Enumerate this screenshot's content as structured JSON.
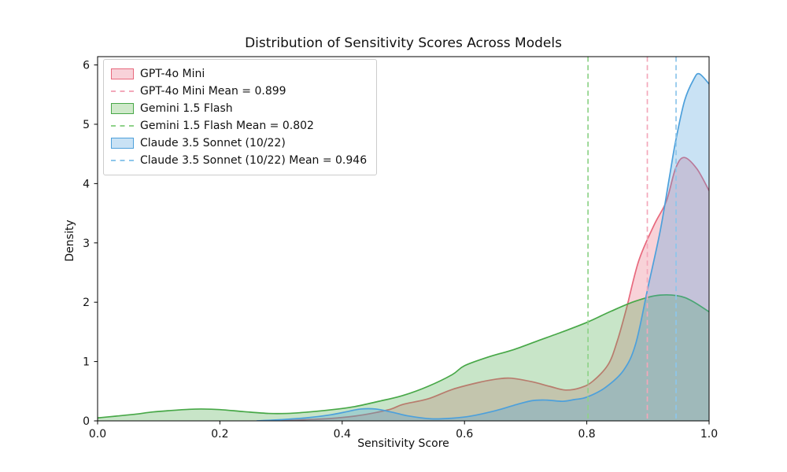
{
  "title": "Distribution of Sensitivity Scores Across Models",
  "axes": {
    "xlabel": "Sensitivity Score",
    "ylabel": "Density"
  },
  "legend": {
    "items": [
      {
        "label": "GPT-4o Mini",
        "swatch": "patch",
        "color": "#e8697d",
        "fill": "#f8d2d9"
      },
      {
        "label": "GPT-4o Mini Mean = 0.899",
        "swatch": "dashed",
        "color": "#f3a8ba",
        "fill": "#f3a8ba"
      },
      {
        "label": "Gemini 1.5 Flash",
        "swatch": "patch",
        "color": "#48a848",
        "fill": "#cfe9ca"
      },
      {
        "label": "Gemini 1.5 Flash Mean = 0.802",
        "swatch": "dashed",
        "color": "#8fd289",
        "fill": "#8fd289"
      },
      {
        "label": "Claude 3.5 Sonnet (10/22)",
        "swatch": "patch",
        "color": "#4da0db",
        "fill": "#c9e2f5"
      },
      {
        "label": "Claude 3.5 Sonnet (10/22) Mean = 0.946",
        "swatch": "dashed",
        "color": "#8dc6eb",
        "fill": "#8dc6eb"
      }
    ]
  },
  "chart_data": {
    "type": "area",
    "kind": "kde-density-curves",
    "title": "Distribution of Sensitivity Scores Across Models",
    "xlabel": "Sensitivity Score",
    "ylabel": "Density",
    "xlim": [
      0.0,
      1.0
    ],
    "ylim": [
      0.0,
      6.14
    ],
    "grid": false,
    "legend_position": "upper left",
    "x_ticks": [
      {
        "v": 0.0,
        "label": "0.0"
      },
      {
        "v": 0.2,
        "label": "0.2"
      },
      {
        "v": 0.4,
        "label": "0.4"
      },
      {
        "v": 0.6,
        "label": "0.6"
      },
      {
        "v": 0.8,
        "label": "0.8"
      },
      {
        "v": 1.0,
        "label": "1.0"
      }
    ],
    "y_ticks": [
      {
        "v": 0,
        "label": "0"
      },
      {
        "v": 1,
        "label": "1"
      },
      {
        "v": 2,
        "label": "2"
      },
      {
        "v": 3,
        "label": "3"
      },
      {
        "v": 4,
        "label": "4"
      },
      {
        "v": 5,
        "label": "5"
      },
      {
        "v": 6,
        "label": "6"
      }
    ],
    "series": [
      {
        "name": "GPT-4o Mini",
        "mean": 0.899,
        "peak": {
          "x": 0.959,
          "density": 4.44
        },
        "line_color": "#e8697d",
        "mean_line_color": "#f3a8ba",
        "fill_opacity": 0.3,
        "points": [
          [
            0.3,
            0.0
          ],
          [
            0.34,
            0.02
          ],
          [
            0.38,
            0.04
          ],
          [
            0.42,
            0.08
          ],
          [
            0.45,
            0.13
          ],
          [
            0.48,
            0.2
          ],
          [
            0.5,
            0.28
          ],
          [
            0.54,
            0.37
          ],
          [
            0.58,
            0.53
          ],
          [
            0.62,
            0.64
          ],
          [
            0.65,
            0.7
          ],
          [
            0.675,
            0.72
          ],
          [
            0.71,
            0.66
          ],
          [
            0.74,
            0.58
          ],
          [
            0.765,
            0.52
          ],
          [
            0.79,
            0.56
          ],
          [
            0.81,
            0.67
          ],
          [
            0.835,
            0.95
          ],
          [
            0.85,
            1.35
          ],
          [
            0.865,
            1.9
          ],
          [
            0.885,
            2.7
          ],
          [
            0.91,
            3.3
          ],
          [
            0.93,
            3.7
          ],
          [
            0.945,
            4.25
          ],
          [
            0.959,
            4.44
          ],
          [
            0.98,
            4.25
          ],
          [
            1.0,
            3.88
          ]
        ]
      },
      {
        "name": "Gemini 1.5 Flash",
        "mean": 0.802,
        "peak": {
          "x": 0.92,
          "density": 2.12
        },
        "line_color": "#48a848",
        "mean_line_color": "#8fd289",
        "fill_opacity": 0.3,
        "points": [
          [
            0.0,
            0.05
          ],
          [
            0.03,
            0.08
          ],
          [
            0.06,
            0.11
          ],
          [
            0.09,
            0.15
          ],
          [
            0.12,
            0.175
          ],
          [
            0.15,
            0.195
          ],
          [
            0.17,
            0.2
          ],
          [
            0.2,
            0.19
          ],
          [
            0.24,
            0.155
          ],
          [
            0.28,
            0.125
          ],
          [
            0.31,
            0.125
          ],
          [
            0.34,
            0.145
          ],
          [
            0.38,
            0.185
          ],
          [
            0.42,
            0.24
          ],
          [
            0.46,
            0.33
          ],
          [
            0.5,
            0.43
          ],
          [
            0.54,
            0.58
          ],
          [
            0.58,
            0.78
          ],
          [
            0.6,
            0.93
          ],
          [
            0.64,
            1.08
          ],
          [
            0.68,
            1.2
          ],
          [
            0.72,
            1.35
          ],
          [
            0.76,
            1.5
          ],
          [
            0.8,
            1.66
          ],
          [
            0.84,
            1.85
          ],
          [
            0.88,
            2.02
          ],
          [
            0.92,
            2.12
          ],
          [
            0.96,
            2.08
          ],
          [
            1.0,
            1.84
          ]
        ]
      },
      {
        "name": "Claude 3.5 Sonnet (10/22)",
        "mean": 0.946,
        "peak": {
          "x": 0.984,
          "density": 5.85
        },
        "line_color": "#4da0db",
        "mean_line_color": "#8dc6eb",
        "fill_opacity": 0.3,
        "points": [
          [
            0.26,
            0.0
          ],
          [
            0.3,
            0.02
          ],
          [
            0.34,
            0.05
          ],
          [
            0.38,
            0.1
          ],
          [
            0.41,
            0.16
          ],
          [
            0.43,
            0.2
          ],
          [
            0.455,
            0.2
          ],
          [
            0.48,
            0.15
          ],
          [
            0.51,
            0.08
          ],
          [
            0.545,
            0.035
          ],
          [
            0.58,
            0.045
          ],
          [
            0.61,
            0.08
          ],
          [
            0.65,
            0.17
          ],
          [
            0.68,
            0.26
          ],
          [
            0.71,
            0.34
          ],
          [
            0.735,
            0.35
          ],
          [
            0.76,
            0.33
          ],
          [
            0.78,
            0.36
          ],
          [
            0.8,
            0.4
          ],
          [
            0.83,
            0.56
          ],
          [
            0.86,
            0.85
          ],
          [
            0.88,
            1.3
          ],
          [
            0.9,
            2.25
          ],
          [
            0.92,
            3.2
          ],
          [
            0.935,
            4.1
          ],
          [
            0.945,
            4.7
          ],
          [
            0.96,
            5.4
          ],
          [
            0.975,
            5.76
          ],
          [
            0.984,
            5.85
          ],
          [
            1.0,
            5.68
          ]
        ]
      }
    ]
  }
}
